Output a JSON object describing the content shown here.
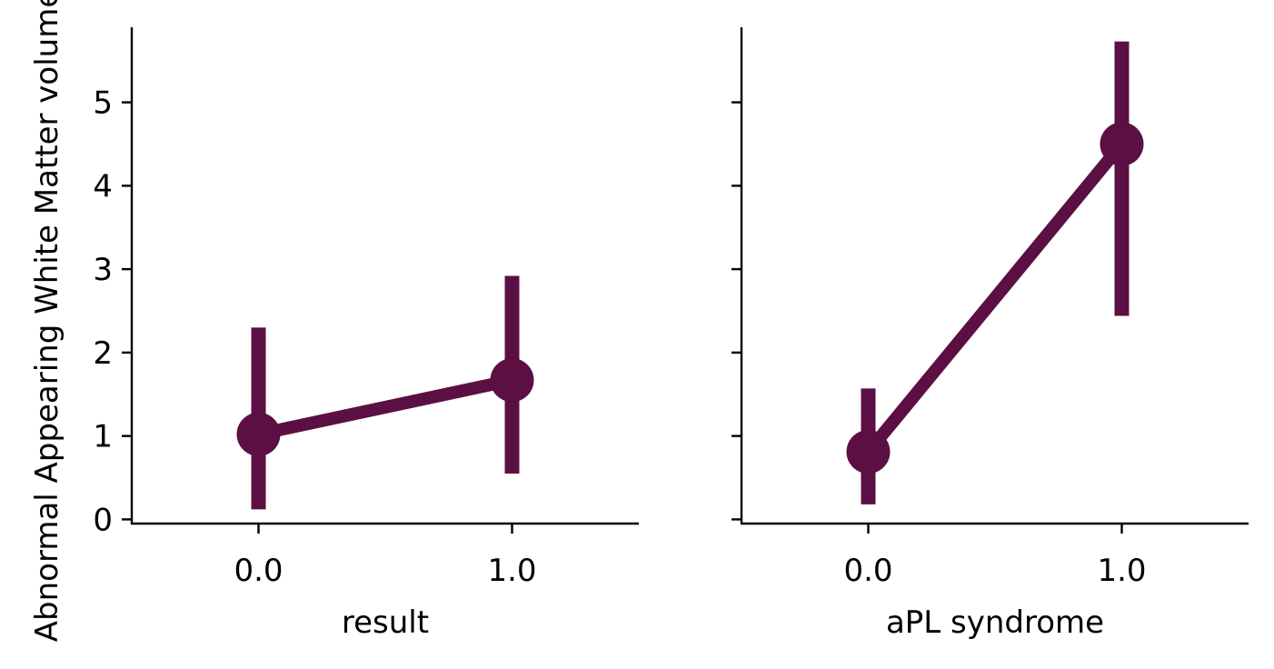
{
  "chart_data": {
    "type": "line",
    "ylabel": "Abnormal Appearing White Matter volume",
    "ylim": [
      -0.05,
      5.9
    ],
    "yticks": [
      0,
      1,
      2,
      3,
      4,
      5
    ],
    "grid": false,
    "color": "#5c0f42",
    "panels": [
      {
        "xlabel": "result",
        "categories": [
          "0.0",
          "1.0"
        ],
        "values": [
          1.02,
          1.67
        ],
        "error_low": [
          0.12,
          0.55
        ],
        "error_high": [
          2.3,
          2.92
        ]
      },
      {
        "xlabel": "aPL syndrome",
        "categories": [
          "0.0",
          "1.0"
        ],
        "values": [
          0.81,
          4.5
        ],
        "error_low": [
          0.18,
          2.44
        ],
        "error_high": [
          1.57,
          5.73
        ]
      }
    ]
  }
}
